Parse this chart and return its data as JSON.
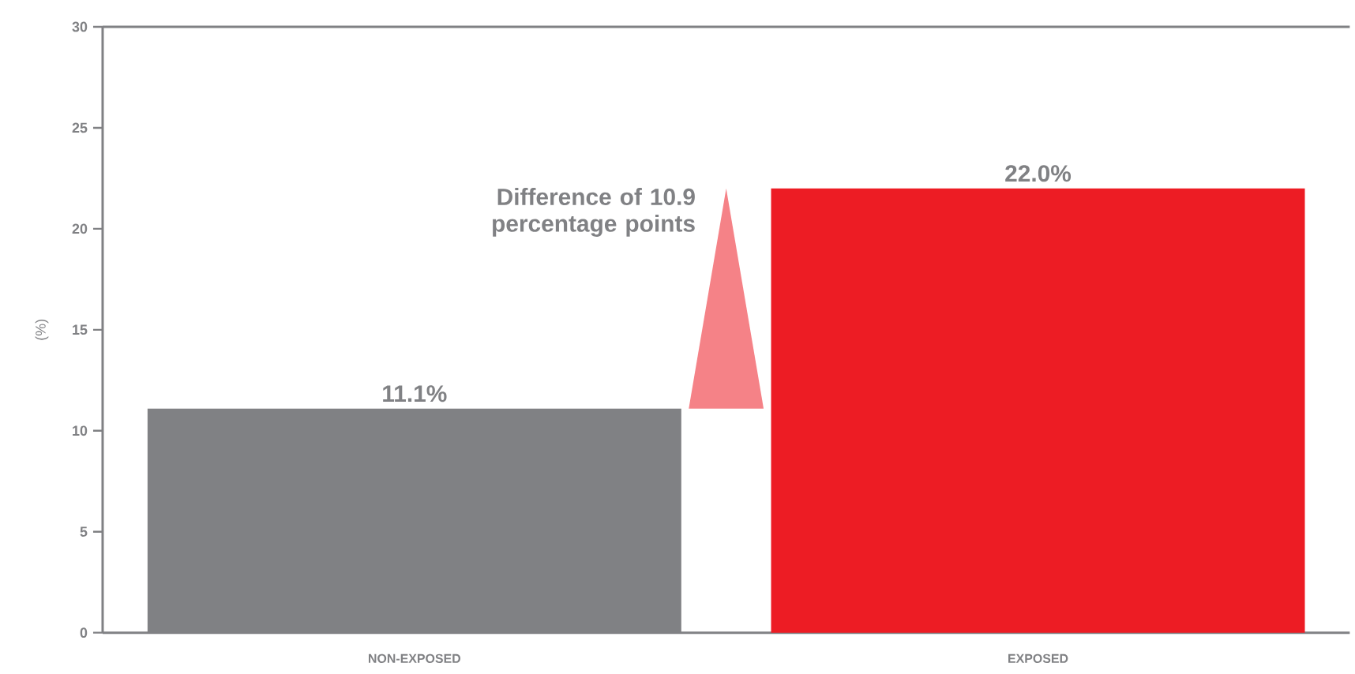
{
  "chart_data": {
    "type": "bar",
    "ylabel": "(%)",
    "categories": [
      "NON-EXPOSED",
      "EXPOSED"
    ],
    "values": [
      11.1,
      22.0
    ],
    "colors": [
      "#808184",
      "#ed1c24"
    ],
    "value_labels": [
      "11.1%",
      "22.0%"
    ],
    "annotations": [
      "Difference of 10.9 percentage points"
    ],
    "ylim": [
      0,
      30
    ],
    "yticks": [
      0,
      5,
      10,
      15,
      20,
      25,
      30
    ],
    "grid": false
  }
}
